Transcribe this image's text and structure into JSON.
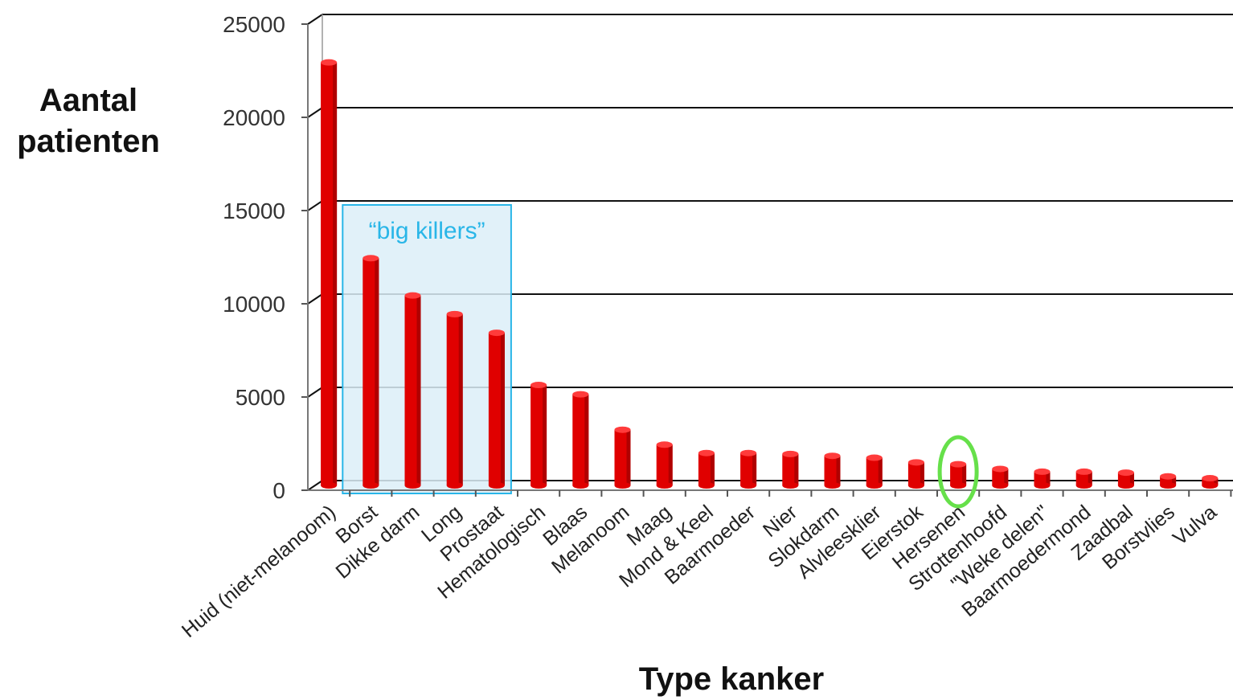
{
  "chart_data": {
    "type": "bar",
    "ylabel": [
      "Aantal",
      "patienten"
    ],
    "xlabel": "Type kanker",
    "ylim": [
      0,
      25000
    ],
    "yticks": [
      0,
      5000,
      10000,
      15000,
      20000,
      25000
    ],
    "grid": true,
    "categories": [
      "Huid (niet-melanoom)",
      "Borst",
      "Dikke darm",
      "Long",
      "Prostaat",
      "Hematologisch",
      "Blaas",
      "Melanoom",
      "Maag",
      "Mond & Keel",
      "Baarmoeder",
      "Nier",
      "Slokdarm",
      "Alvleesklier",
      "Eierstok",
      "Hersenen",
      "Strottenhoofd",
      "\"Weke delen\"",
      "Baarmoedermond",
      "Zaadbal",
      "Borstvlies",
      "Vulva"
    ],
    "values": [
      22600,
      12100,
      10100,
      9100,
      8100,
      5300,
      4800,
      2900,
      2100,
      1650,
      1650,
      1600,
      1500,
      1400,
      1150,
      1050,
      800,
      650,
      650,
      600,
      400,
      300
    ],
    "annotations": {
      "group_box": {
        "label": "“big killers”",
        "categories": [
          "Borst",
          "Dikke darm",
          "Long",
          "Prostaat"
        ]
      },
      "highlight": {
        "category": "Hersenen"
      }
    },
    "colors": {
      "bar": "#e00000",
      "bar_top": "#ff3b3b",
      "box_fill": "#dceef8",
      "box_stroke": "#29b6e8",
      "box_text": "#29b6e8",
      "highlight": "#66e04a",
      "grid": "#111111"
    }
  }
}
